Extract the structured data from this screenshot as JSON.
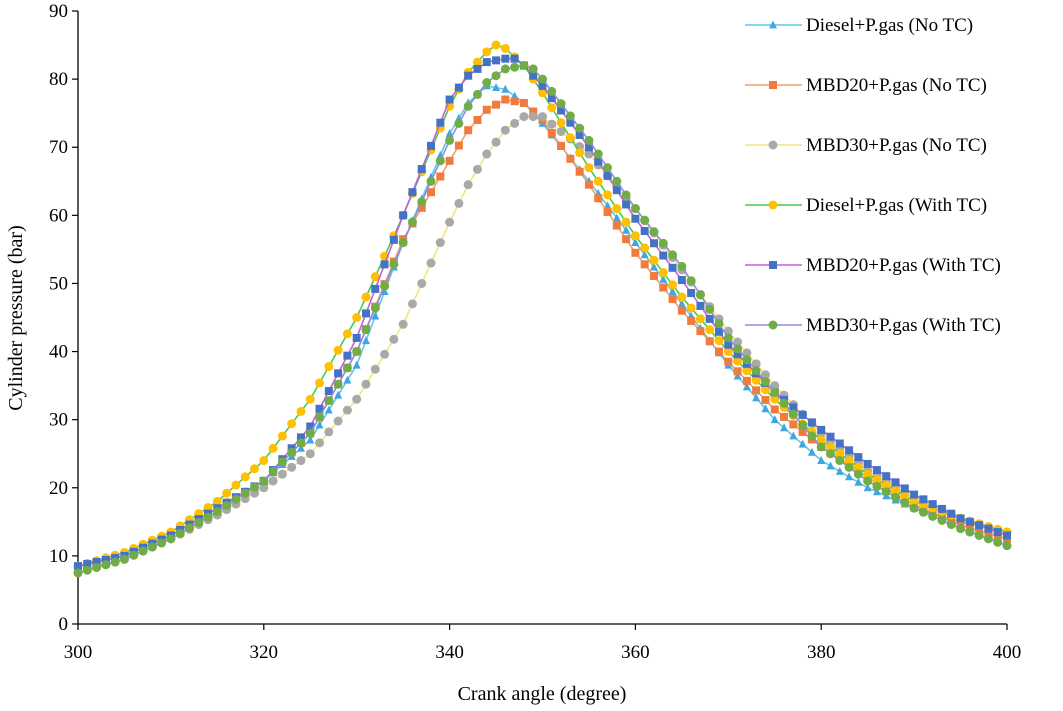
{
  "chart_data": {
    "type": "line",
    "title": "",
    "xlabel": "Crank angle (degree)",
    "ylabel": "Cylinder pressure (bar)",
    "xlim": [
      300,
      400
    ],
    "ylim": [
      0,
      90
    ],
    "xticks": [
      "300",
      "320",
      "340",
      "360",
      "380",
      "400"
    ],
    "yticks": [
      "0",
      "10",
      "20",
      "30",
      "40",
      "50",
      "60",
      "70",
      "80",
      "90"
    ],
    "grid": false,
    "legend_position": "top-right",
    "series": [
      {
        "name": "Diesel+P.gas (No TC)",
        "line_color": "#5bc8e8",
        "marker_color": "#41a6e0",
        "marker": "triangle",
        "x": [
          300,
          305,
          310,
          315,
          320,
          325,
          330,
          335,
          340,
          342,
          344,
          346,
          348,
          350,
          355,
          360,
          365,
          370,
          375,
          380,
          385,
          390,
          395,
          400
        ],
        "y": [
          8.5,
          10.0,
          13.0,
          17.0,
          21.0,
          27.0,
          38.0,
          56.0,
          72.0,
          76.5,
          79.0,
          78.5,
          76.5,
          73.5,
          65.0,
          56.0,
          47.0,
          38.0,
          30.0,
          24.0,
          20.0,
          17.0,
          15.0,
          13.5
        ]
      },
      {
        "name": "MBD20+P.gas (No TC)",
        "line_color": "#f0a070",
        "marker_color": "#f07b3c",
        "marker": "square",
        "x": [
          300,
          305,
          310,
          315,
          320,
          325,
          330,
          335,
          340,
          342,
          344,
          346,
          348,
          350,
          355,
          360,
          365,
          370,
          375,
          380,
          385,
          390,
          395,
          400
        ],
        "y": [
          8.5,
          10.0,
          13.0,
          17.0,
          21.0,
          28.0,
          40.0,
          56.5,
          68.0,
          72.5,
          75.5,
          77.0,
          76.5,
          74.0,
          64.5,
          54.5,
          46.0,
          38.5,
          31.5,
          26.0,
          21.5,
          17.5,
          14.5,
          12.5
        ]
      },
      {
        "name": "MBD30+P.gas (No TC)",
        "line_color": "#f5e67a",
        "marker_color": "#a9a9a9",
        "marker": "circle",
        "x": [
          300,
          305,
          310,
          315,
          320,
          325,
          330,
          335,
          340,
          342,
          344,
          346,
          348,
          350,
          355,
          360,
          365,
          370,
          375,
          380,
          385,
          390,
          395,
          400
        ],
        "y": [
          7.5,
          9.5,
          12.5,
          16.0,
          20.0,
          25.0,
          33.0,
          44.0,
          59.0,
          64.5,
          69.0,
          72.5,
          74.5,
          74.5,
          69.0,
          61.0,
          52.0,
          43.0,
          35.0,
          28.0,
          22.5,
          18.5,
          15.5,
          13.5
        ]
      },
      {
        "name": "Diesel+P.gas (With TC)",
        "line_color": "#4cc94c",
        "marker_color": "#ffc000",
        "marker": "circle",
        "x": [
          300,
          305,
          310,
          315,
          320,
          325,
          330,
          335,
          340,
          342,
          344,
          345,
          346,
          348,
          350,
          355,
          360,
          365,
          370,
          375,
          380,
          385,
          390,
          395,
          400
        ],
        "y": [
          8.5,
          10.5,
          13.5,
          18.0,
          24.0,
          33.0,
          45.0,
          60.0,
          76.0,
          81.0,
          84.0,
          85.0,
          84.5,
          82.0,
          78.0,
          67.0,
          57.0,
          48.0,
          40.0,
          33.0,
          27.0,
          22.0,
          18.0,
          15.5,
          13.5
        ]
      },
      {
        "name": "MBD20+P.gas (With TC)",
        "line_color": "#c65ee0",
        "marker_color": "#4472c4",
        "marker": "square",
        "x": [
          300,
          305,
          310,
          315,
          320,
          325,
          330,
          335,
          340,
          342,
          344,
          346,
          347,
          348,
          350,
          355,
          360,
          365,
          370,
          375,
          380,
          385,
          390,
          395,
          400
        ],
        "y": [
          8.5,
          10.0,
          13.0,
          17.0,
          21.0,
          29.0,
          42.0,
          60.0,
          77.0,
          80.5,
          82.5,
          83.0,
          83.0,
          82.0,
          79.0,
          70.0,
          59.5,
          50.5,
          41.0,
          34.0,
          28.5,
          23.5,
          19.0,
          15.5,
          13.0
        ]
      },
      {
        "name": "MBD30+P.gas (With TC)",
        "line_color": "#8e8ee0",
        "marker_color": "#70ad47",
        "marker": "circle",
        "x": [
          300,
          305,
          310,
          315,
          320,
          325,
          330,
          335,
          340,
          342,
          344,
          346,
          348,
          349,
          350,
          355,
          360,
          365,
          370,
          375,
          380,
          385,
          390,
          395,
          400
        ],
        "y": [
          7.5,
          9.5,
          12.5,
          16.5,
          21.0,
          28.0,
          40.0,
          56.0,
          71.0,
          76.0,
          79.5,
          81.5,
          82.0,
          81.5,
          80.0,
          71.0,
          61.0,
          52.5,
          42.0,
          34.0,
          26.0,
          21.0,
          17.0,
          14.0,
          11.5
        ]
      }
    ]
  }
}
